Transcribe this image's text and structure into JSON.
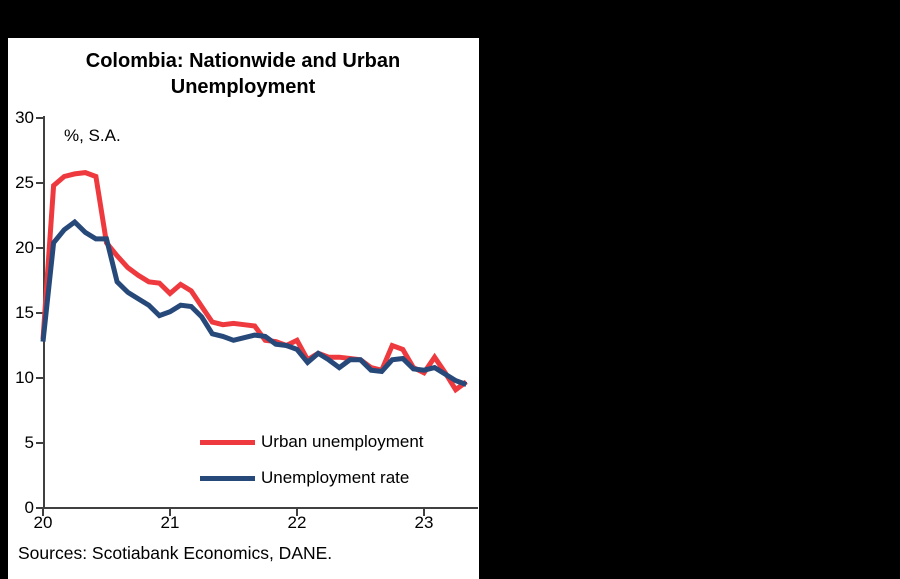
{
  "header": {
    "title": "Colombia: Nationwide and Urban Unemployment"
  },
  "unit_note": "%, S.A.",
  "source_note": "Sources: Scotiabank Economics, DANE.",
  "colors": {
    "urban": "#ee3a3e",
    "national": "#27497a",
    "axis": "#404040",
    "panel": "#ffffff",
    "background": "#000000"
  },
  "legend": [
    {
      "label": "Urban unemployment",
      "color": "#ee3a3e"
    },
    {
      "label": "Unemployment rate",
      "color": "#27497a"
    }
  ],
  "chart_data": {
    "type": "line",
    "title": "Colombia: Nationwide and Urban Unemployment",
    "unit_label": "%, S.A.",
    "xlabel": "",
    "ylabel": "%, S.A.",
    "ylim": [
      0,
      30
    ],
    "grid": false,
    "legend_position": "inside lower right",
    "x_ticks": [
      "20",
      "21",
      "22",
      "23"
    ],
    "y_ticks": [
      30,
      25,
      20,
      15,
      10,
      5,
      0
    ],
    "x_start": "2020-01",
    "x_end": "2023-05",
    "frequency": "monthly",
    "series": [
      {
        "name": "Urban unemployment",
        "color": "#ee3a3e",
        "values": [
          13.0,
          24.8,
          25.5,
          25.7,
          25.8,
          25.5,
          20.4,
          19.4,
          18.5,
          17.9,
          17.4,
          17.3,
          16.5,
          17.2,
          16.7,
          15.5,
          14.3,
          14.1,
          14.2,
          14.1,
          14.0,
          12.9,
          12.8,
          12.5,
          12.9,
          11.4,
          11.9,
          11.6,
          11.6,
          11.5,
          11.4,
          10.8,
          10.6,
          12.5,
          12.2,
          10.8,
          10.4,
          11.6,
          10.4,
          9.1,
          9.7
        ]
      },
      {
        "name": "Unemployment rate",
        "color": "#27497a",
        "values": [
          12.8,
          20.4,
          21.4,
          22.0,
          21.2,
          20.7,
          20.7,
          17.4,
          16.6,
          16.1,
          15.6,
          14.8,
          15.1,
          15.6,
          15.5,
          14.7,
          13.4,
          13.2,
          12.9,
          13.1,
          13.3,
          13.2,
          12.6,
          12.5,
          12.2,
          11.2,
          11.9,
          11.4,
          10.8,
          11.4,
          11.4,
          10.6,
          10.5,
          11.4,
          11.5,
          10.7,
          10.6,
          10.8,
          10.3,
          9.8,
          9.5
        ]
      }
    ]
  }
}
